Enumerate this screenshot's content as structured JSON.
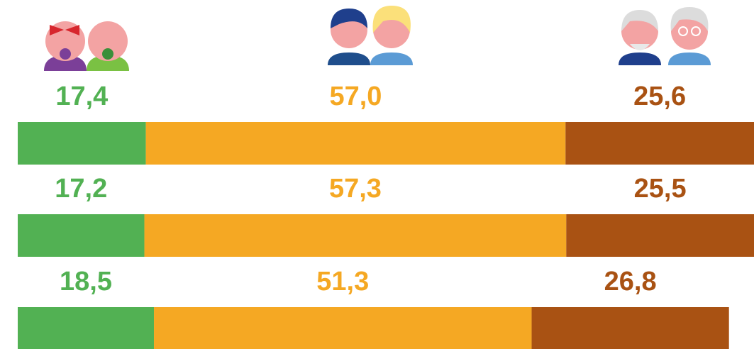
{
  "chart_data": {
    "type": "bar",
    "orientation": "horizontal",
    "stacked": true,
    "categories": [
      null,
      null,
      null
    ],
    "xlim": [
      0,
      100
    ],
    "series": [
      {
        "color": "#52b153",
        "values": [
          17.4,
          17.2,
          18.5
        ],
        "value_labels": [
          "17,4",
          "17,2",
          "18,5"
        ]
      },
      {
        "color": "#f5a823",
        "values": [
          57.0,
          57.3,
          51.3
        ],
        "value_labels": [
          "57,0",
          "57,3",
          "51,3"
        ]
      },
      {
        "color": "#a95213",
        "values": [
          25.6,
          25.5,
          26.8
        ],
        "value_labels": [
          "25,6",
          "25,5",
          "26,8"
        ]
      }
    ]
  }
}
